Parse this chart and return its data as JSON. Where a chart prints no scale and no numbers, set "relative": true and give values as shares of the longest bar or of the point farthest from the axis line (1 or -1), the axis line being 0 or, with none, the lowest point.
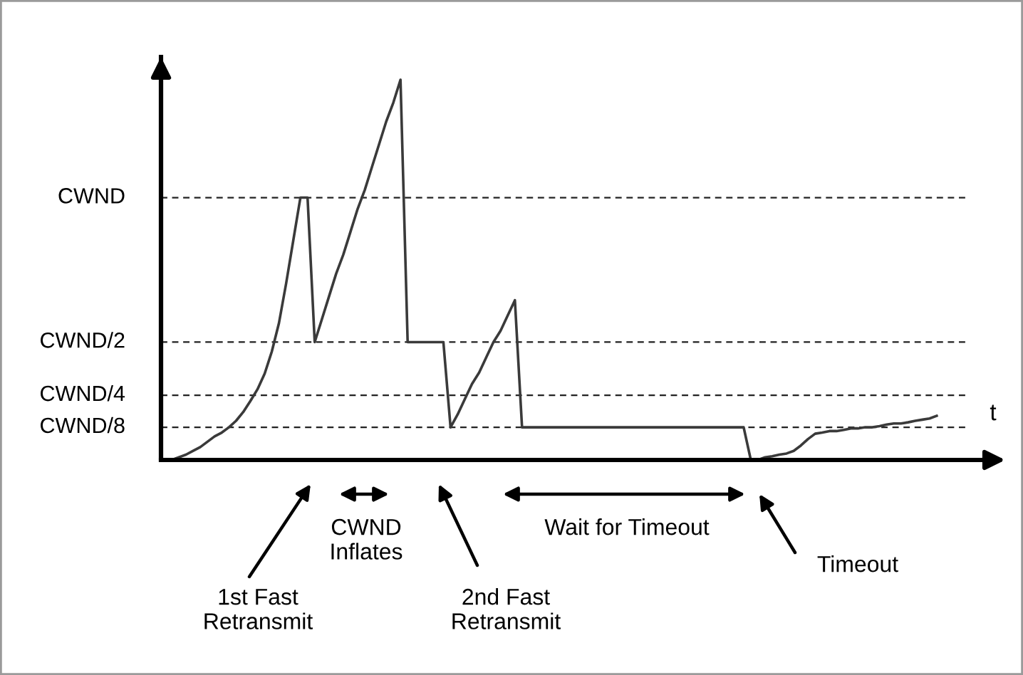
{
  "chart_data": {
    "type": "line",
    "xlabel": "t",
    "relative": true,
    "categories": [
      null,
      null,
      null,
      null,
      null,
      null,
      null,
      null,
      null,
      null,
      null,
      null,
      null,
      null,
      null,
      null,
      null,
      null,
      null,
      null,
      null,
      null,
      null,
      null,
      null,
      null,
      null,
      null,
      null,
      null,
      null,
      null,
      null,
      null,
      null,
      null,
      null,
      null,
      null,
      null,
      null,
      null,
      null,
      null,
      null,
      null,
      null,
      null,
      null,
      null,
      null,
      null,
      null,
      null,
      null,
      null,
      null,
      null,
      null,
      null,
      null,
      null,
      null,
      null,
      null,
      null,
      null,
      null,
      null,
      null,
      null,
      null,
      null,
      null,
      null,
      null,
      null,
      null,
      null,
      null,
      null,
      null,
      null,
      null,
      null,
      null,
      null,
      null,
      null,
      null,
      null,
      null,
      null,
      null,
      null,
      null,
      null,
      null,
      null,
      null,
      null,
      null,
      null,
      null,
      null,
      null,
      null,
      null
    ],
    "series": [
      {
        "color": "#3a3a3a",
        "values": [
          0,
          0.007,
          0.014,
          0.024,
          0.034,
          0.048,
          0.062,
          0.072,
          0.086,
          0.103,
          0.126,
          0.155,
          0.186,
          0.227,
          0.285,
          0.36,
          0.464,
          0.577,
          0.69,
          0.69,
          0.31,
          0.37,
          0.43,
          0.49,
          0.54,
          0.6,
          0.66,
          0.71,
          0.77,
          0.83,
          0.89,
          0.94,
          1,
          0.31,
          0.31,
          0.31,
          0.31,
          0.31,
          0.31,
          0.086,
          0.12,
          0.16,
          0.2,
          0.23,
          0.27,
          0.31,
          0.34,
          0.38,
          0.42,
          0.086,
          0.086,
          0.086,
          0.086,
          0.086,
          0.086,
          0.086,
          0.086,
          0.086,
          0.086,
          0.086,
          0.086,
          0.086,
          0.086,
          0.086,
          0.086,
          0.086,
          0.086,
          0.086,
          0.086,
          0.086,
          0.086,
          0.086,
          0.086,
          0.086,
          0.086,
          0.086,
          0.086,
          0.086,
          0.086,
          0.086,
          0.086,
          0,
          0,
          0.007,
          0.01,
          0.014,
          0.017,
          0.024,
          0.038,
          0.055,
          0.069,
          0.072,
          0.076,
          0.076,
          0.079,
          0.083,
          0.083,
          0.086,
          0.086,
          0.089,
          0.093,
          0.096,
          0.096,
          0.099,
          0.103,
          0.106,
          0.109,
          0.116
        ]
      }
    ],
    "ref_lines": [
      {
        "axis": "y",
        "value": 0.69,
        "label": "CWND",
        "color": "#222222",
        "line_style": "dashed"
      },
      {
        "axis": "y",
        "value": 0.31,
        "label": "CWND/2",
        "color": "#222222",
        "line_style": "dashed"
      },
      {
        "axis": "y",
        "value": 0.17,
        "label": "CWND/4",
        "color": "#222222",
        "line_style": "dashed"
      },
      {
        "axis": "y",
        "value": 0.086,
        "label": "CWND/8",
        "color": "#222222",
        "line_style": "dashed"
      }
    ],
    "tick_labels": false,
    "line_style": "solid",
    "annotations": [
      "1st Fast\nRetransmit",
      "CWND\nInflates",
      "2nd Fast\nRetransmit",
      "Wait for Timeout",
      "Timeout"
    ]
  }
}
